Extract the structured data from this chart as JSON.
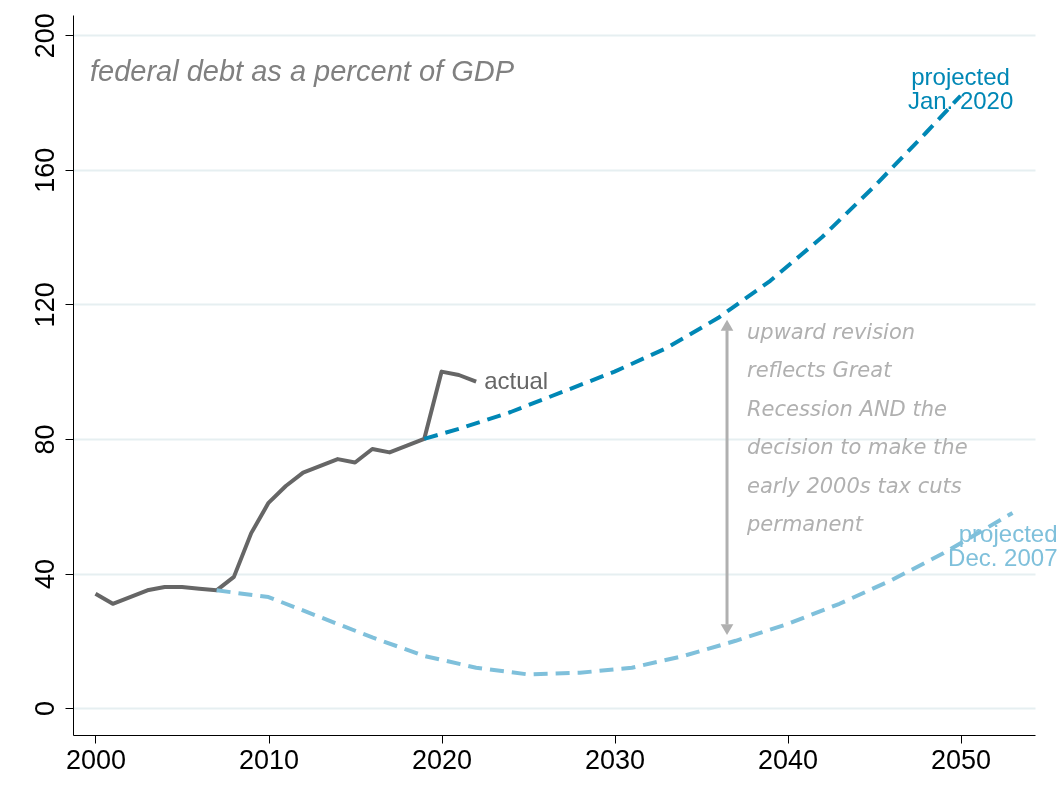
{
  "chart_data": {
    "type": "line",
    "subtitle": "federal debt as a percent of GDP",
    "xlim": [
      1998.7,
      2054.3
    ],
    "xticks": [
      2000,
      2010,
      2020,
      2030,
      2040,
      2050
    ],
    "ylim": [
      -8,
      206
    ],
    "yticks": [
      0,
      40,
      80,
      120,
      160,
      200
    ],
    "grid": "y",
    "marker": "none",
    "series": [
      {
        "name": "actual",
        "color": "#666666",
        "line_style": "solid",
        "x": [
          2000,
          2001,
          2002,
          2003,
          2004,
          2005,
          2006,
          2007,
          2008,
          2009,
          2010,
          2011,
          2012,
          2013,
          2014,
          2015,
          2016,
          2017,
          2018,
          2019,
          2020,
          2021,
          2022
        ],
        "values": [
          34,
          31,
          33,
          35,
          36,
          36,
          35.5,
          35,
          39,
          52,
          61,
          66,
          70,
          72,
          74,
          73,
          77,
          76,
          78,
          80,
          100,
          99,
          97
        ]
      },
      {
        "name": "projected\nJan. 2020",
        "color": "#0087b5",
        "line_style": "dashed",
        "x": [
          2019,
          2021,
          2024,
          2027,
          2030,
          2033,
          2036,
          2039,
          2042,
          2045,
          2048,
          2050
        ],
        "values": [
          80,
          83,
          88,
          94,
          100,
          107,
          116,
          127,
          140,
          155,
          171,
          182
        ]
      },
      {
        "name": "projected\nDec. 2007",
        "color": "#7fc0db",
        "line_style": "dashed",
        "x": [
          2007,
          2010,
          2013,
          2016,
          2019,
          2022,
          2025,
          2028,
          2031,
          2034,
          2037,
          2040,
          2043,
          2046,
          2049,
          2053
        ],
        "values": [
          35,
          33,
          27,
          21,
          15.5,
          12,
          10,
          10.5,
          12,
          15.5,
          20,
          25,
          31,
          38,
          46,
          58
        ]
      }
    ],
    "annotations": [
      {
        "text": "upward revision\nreflects Great\nRecession AND the\ndecision to make the\nearly 2000s tax cuts\npermanent",
        "x": 2036.5,
        "y": 116
      }
    ]
  }
}
